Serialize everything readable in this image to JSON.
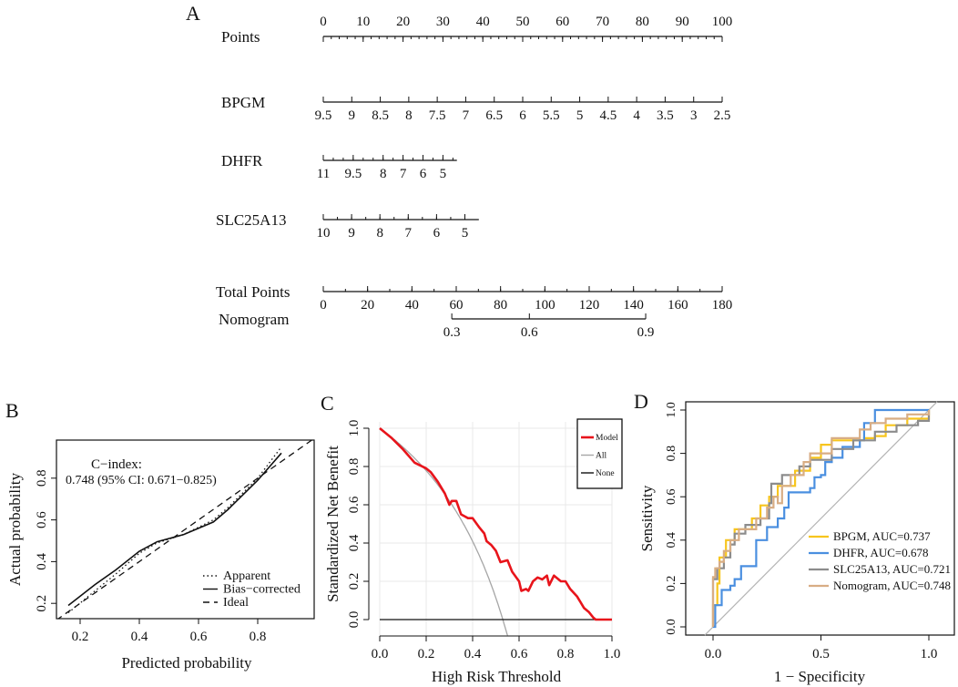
{
  "panel_labels": [
    "A",
    "B",
    "C",
    "D"
  ],
  "colors": {
    "model": "#e8141b",
    "all": "#a6a6a6",
    "none": "#111111",
    "BPGM": "#f7c51e",
    "DHFR": "#4a8fe0",
    "SLC25A13": "#8c8c8c",
    "Nomogram": "#d8ad84",
    "reference": "#b3b3b3",
    "grid": "#e8e8e8"
  },
  "chart_data": [
    {
      "panel": "A",
      "type": "nomogram",
      "rows": [
        {
          "label": "Points",
          "scale": "points",
          "range": [
            0,
            100
          ],
          "minor_step": 2,
          "label_side": "above",
          "ticks": [
            {
              "label": "0",
              "pos": 0
            },
            {
              "label": "10",
              "pos": 10
            },
            {
              "label": "20",
              "pos": 20
            },
            {
              "label": "30",
              "pos": 30
            },
            {
              "label": "40",
              "pos": 40
            },
            {
              "label": "50",
              "pos": 50
            },
            {
              "label": "60",
              "pos": 60
            },
            {
              "label": "70",
              "pos": 70
            },
            {
              "label": "80",
              "pos": 80
            },
            {
              "label": "90",
              "pos": 90
            },
            {
              "label": "100",
              "pos": 100
            }
          ]
        },
        {
          "label": "BPGM",
          "scale": "points",
          "range": [
            0,
            100
          ],
          "minor_step": 0,
          "label_side": "below",
          "ticks": [
            {
              "label": "9.5",
              "pos": 0
            },
            {
              "label": "9",
              "pos": 7.14
            },
            {
              "label": "8.5",
              "pos": 14.29
            },
            {
              "label": "8",
              "pos": 21.43
            },
            {
              "label": "7.5",
              "pos": 28.57
            },
            {
              "label": "7",
              "pos": 35.71
            },
            {
              "label": "6.5",
              "pos": 42.86
            },
            {
              "label": "6",
              "pos": 50
            },
            {
              "label": "5.5",
              "pos": 57.14
            },
            {
              "label": "5",
              "pos": 64.29
            },
            {
              "label": "4.5",
              "pos": 71.43
            },
            {
              "label": "4",
              "pos": 78.57
            },
            {
              "label": "3.5",
              "pos": 85.71
            },
            {
              "label": "3",
              "pos": 92.86
            },
            {
              "label": "2.5",
              "pos": 100
            }
          ]
        },
        {
          "label": "DHFR",
          "scale": "points",
          "range": [
            0,
            33.5
          ],
          "minor_step": 2.5,
          "label_side": "below",
          "ticks": [
            {
              "label": "11",
              "pos": 0
            },
            {
              "label": "9.5",
              "pos": 7.5
            },
            {
              "label": "8",
              "pos": 15
            },
            {
              "label": "7",
              "pos": 20
            },
            {
              "label": "6",
              "pos": 25
            },
            {
              "label": "5",
              "pos": 30
            }
          ]
        },
        {
          "label": "SLC25A13",
          "scale": "points",
          "range": [
            0,
            39
          ],
          "minor_step": 3.55,
          "label_side": "below",
          "ticks": [
            {
              "label": "10",
              "pos": 0
            },
            {
              "label": "9",
              "pos": 7.1
            },
            {
              "label": "8",
              "pos": 14.2
            },
            {
              "label": "7",
              "pos": 21.3
            },
            {
              "label": "6",
              "pos": 28.4
            },
            {
              "label": "5",
              "pos": 35.5
            }
          ]
        },
        {
          "label": "Total Points",
          "scale": "total",
          "range": [
            0,
            180
          ],
          "minor_step": 10,
          "label_side": "below",
          "ticks": [
            {
              "label": "0",
              "pos": 0
            },
            {
              "label": "20",
              "pos": 20
            },
            {
              "label": "40",
              "pos": 40
            },
            {
              "label": "60",
              "pos": 60
            },
            {
              "label": "80",
              "pos": 80
            },
            {
              "label": "100",
              "pos": 100
            },
            {
              "label": "120",
              "pos": 120
            },
            {
              "label": "140",
              "pos": 140
            },
            {
              "label": "160",
              "pos": 160
            },
            {
              "label": "180",
              "pos": 180
            }
          ]
        },
        {
          "label": "Nomogram",
          "scale": "total",
          "range": [
            58,
            145.5
          ],
          "minor_step": 0,
          "label_side": "below",
          "ticks": [
            {
              "label": "0.3",
              "pos": 58
            },
            {
              "label": "0.6",
              "pos": 93
            },
            {
              "label": "0.9",
              "pos": 145.5
            }
          ]
        }
      ]
    },
    {
      "panel": "B",
      "type": "line",
      "xlabel": "Predicted probability",
      "ylabel": "Actual probability",
      "xlim": [
        0.12,
        0.99
      ],
      "ylim": [
        0.127,
        0.98
      ],
      "xticks": [
        "0.2",
        "0.4",
        "0.6",
        "0.8"
      ],
      "yticks": [
        "0.2",
        "0.4",
        "0.6",
        "0.8"
      ],
      "annotation": [
        "C−index:",
        "0.748 (95% CI: 0.671−0.825)"
      ],
      "legend_position": "bottom-right",
      "series": [
        {
          "name": "Apparent",
          "style": "dotted",
          "x": [
            0.16,
            0.25,
            0.32,
            0.4,
            0.46,
            0.55,
            0.65,
            0.7,
            0.8,
            0.88
          ],
          "y": [
            0.155,
            0.26,
            0.34,
            0.44,
            0.49,
            0.53,
            0.6,
            0.66,
            0.8,
            0.95
          ]
        },
        {
          "name": "Bias−corrected",
          "style": "solid",
          "x": [
            0.16,
            0.25,
            0.32,
            0.4,
            0.46,
            0.55,
            0.65,
            0.7,
            0.8,
            0.88
          ],
          "y": [
            0.19,
            0.29,
            0.36,
            0.45,
            0.495,
            0.53,
            0.59,
            0.65,
            0.79,
            0.92
          ]
        },
        {
          "name": "Ideal",
          "style": "dashed",
          "x": [
            0.12,
            0.99
          ],
          "y": [
            0.12,
            0.99
          ]
        }
      ]
    },
    {
      "panel": "C",
      "type": "line",
      "xlabel": "High Risk Threshold",
      "ylabel": "Standardized Net Benefit",
      "xlim": [
        0,
        1
      ],
      "ylim": [
        -0.086,
        1
      ],
      "xticks": [
        "0.0",
        "0.2",
        "0.4",
        "0.6",
        "0.8",
        "1.0"
      ],
      "yticks": [
        "0.0",
        "0.2",
        "0.4",
        "0.6",
        "0.8",
        "1.0"
      ],
      "grid": true,
      "legend_position": "top-right",
      "series": [
        {
          "name": "Model",
          "color_key": "model",
          "x": [
            0,
            0.05,
            0.1,
            0.15,
            0.2,
            0.22,
            0.25,
            0.28,
            0.3,
            0.31,
            0.33,
            0.35,
            0.38,
            0.4,
            0.43,
            0.45,
            0.46,
            0.48,
            0.5,
            0.52,
            0.55,
            0.57,
            0.6,
            0.61,
            0.63,
            0.64,
            0.66,
            0.68,
            0.7,
            0.72,
            0.73,
            0.75,
            0.78,
            0.8,
            0.82,
            0.85,
            0.88,
            0.9,
            0.92,
            0.93,
            1.0
          ],
          "y": [
            1,
            0.95,
            0.89,
            0.82,
            0.79,
            0.77,
            0.72,
            0.66,
            0.6,
            0.62,
            0.62,
            0.55,
            0.53,
            0.53,
            0.48,
            0.45,
            0.41,
            0.39,
            0.36,
            0.3,
            0.31,
            0.25,
            0.2,
            0.15,
            0.16,
            0.15,
            0.2,
            0.22,
            0.21,
            0.23,
            0.18,
            0.23,
            0.2,
            0.2,
            0.16,
            0.12,
            0.06,
            0.04,
            0.01,
            0,
            0
          ]
        },
        {
          "name": "All",
          "color_key": "all",
          "prevalence": 0.53,
          "x_range": [
            0,
            0.55
          ]
        },
        {
          "name": "None",
          "color_key": "none",
          "x": [
            0,
            1
          ],
          "y": [
            0,
            0
          ]
        }
      ]
    },
    {
      "panel": "D",
      "type": "line",
      "xlabel": "1 − Specificity",
      "ylabel": "Sensitivity",
      "xlim": [
        -0.126,
        1.118
      ],
      "ylim": [
        -0.038,
        1.038
      ],
      "xticks": [
        "0.0",
        "0.5",
        "1.0"
      ],
      "yticks": [
        "0.0",
        "0.2",
        "0.4",
        "0.6",
        "0.8",
        "1.0"
      ],
      "legend_position": "bottom-right",
      "series": [
        {
          "name": "BPGM",
          "legend": "BPGM, AUC=0.737",
          "auc": 0.737,
          "color_key": "BPGM",
          "x": [
            0,
            0,
            0.02,
            0.03,
            0.06,
            0.1,
            0.18,
            0.22,
            0.26,
            0.3,
            0.38,
            0.45,
            0.5,
            0.55,
            0.7,
            0.75,
            0.8,
            0.9,
            1
          ],
          "y": [
            0,
            0.1,
            0.2,
            0.32,
            0.4,
            0.45,
            0.5,
            0.56,
            0.6,
            0.65,
            0.72,
            0.78,
            0.84,
            0.86,
            0.87,
            0.88,
            0.93,
            0.96,
            1
          ]
        },
        {
          "name": "DHFR",
          "legend": "DHFR, AUC=0.678",
          "auc": 0.678,
          "color_key": "DHFR",
          "x": [
            0,
            0.01,
            0.04,
            0.08,
            0.1,
            0.13,
            0.2,
            0.25,
            0.3,
            0.33,
            0.35,
            0.45,
            0.47,
            0.5,
            0.52,
            0.55,
            0.6,
            0.68,
            0.7,
            0.75,
            1
          ],
          "y": [
            0,
            0.1,
            0.17,
            0.19,
            0.22,
            0.28,
            0.4,
            0.46,
            0.5,
            0.55,
            0.62,
            0.64,
            0.69,
            0.7,
            0.76,
            0.78,
            0.83,
            0.86,
            0.94,
            1,
            1
          ]
        },
        {
          "name": "SLC25A13",
          "legend": "SLC25A13, AUC=0.721",
          "auc": 0.721,
          "color_key": "SLC25A13",
          "x": [
            0,
            0,
            0.02,
            0.05,
            0.08,
            0.1,
            0.15,
            0.22,
            0.26,
            0.27,
            0.32,
            0.4,
            0.45,
            0.5,
            0.55,
            0.65,
            0.75,
            0.85,
            0.95,
            1
          ],
          "y": [
            0,
            0.22,
            0.27,
            0.32,
            0.38,
            0.43,
            0.47,
            0.5,
            0.57,
            0.66,
            0.7,
            0.74,
            0.77,
            0.77,
            0.82,
            0.86,
            0.9,
            0.93,
            0.95,
            1
          ]
        },
        {
          "name": "Nomogram",
          "legend": "Nomogram, AUC=0.748",
          "auc": 0.748,
          "color_key": "Nomogram",
          "x": [
            0,
            0,
            0.01,
            0.03,
            0.05,
            0.08,
            0.12,
            0.2,
            0.25,
            0.28,
            0.3,
            0.32,
            0.36,
            0.42,
            0.45,
            0.5,
            0.55,
            0.63,
            0.68,
            0.73,
            0.8,
            0.9,
            1
          ],
          "y": [
            0,
            0.23,
            0.27,
            0.3,
            0.35,
            0.4,
            0.45,
            0.5,
            0.55,
            0.6,
            0.57,
            0.65,
            0.7,
            0.76,
            0.8,
            0.8,
            0.87,
            0.87,
            0.91,
            0.94,
            0.96,
            0.98,
            1
          ]
        }
      ]
    }
  ]
}
